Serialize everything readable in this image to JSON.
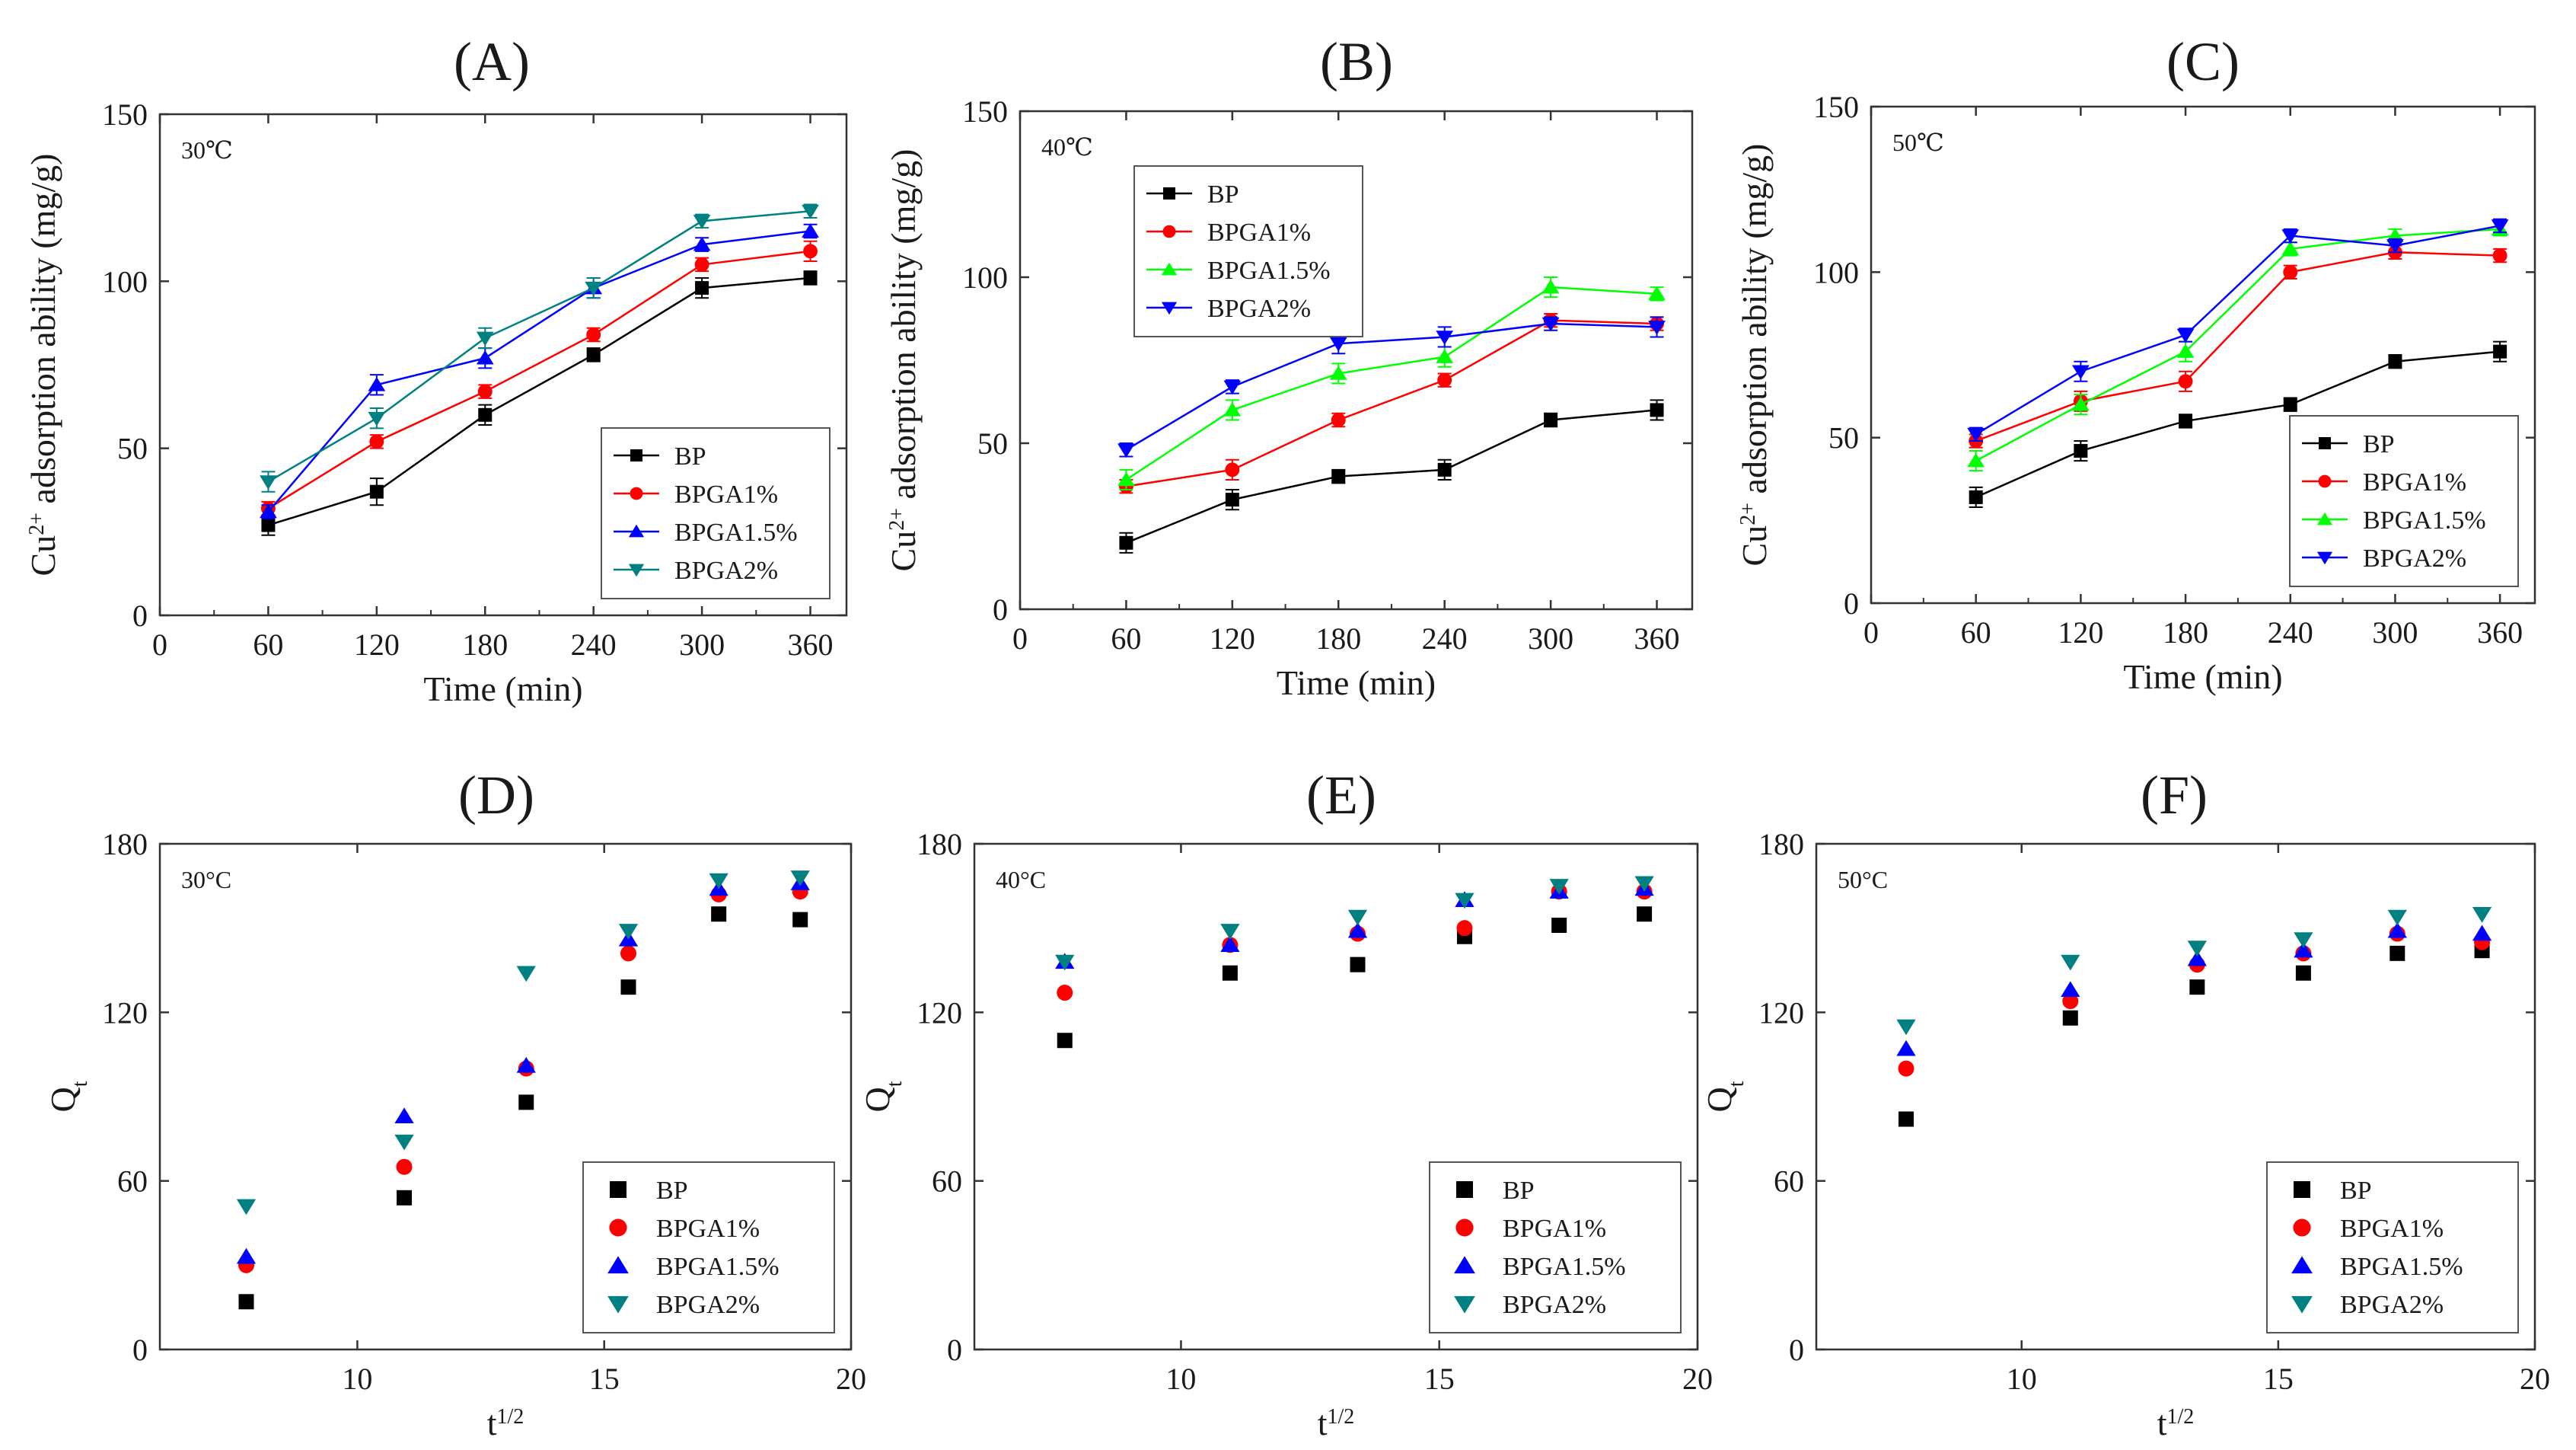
{
  "chart_data": [
    {
      "id": "A",
      "panel_label": "(A)",
      "type": "line",
      "annotation": "30℃",
      "xlabel": "Time (min)",
      "ylabel": "Cu2+ adsorption ability (mg/g)",
      "ylabel_parts": [
        "Cu",
        "2+",
        " adsorption ability (mg/g)"
      ],
      "xlim": [
        0,
        380
      ],
      "ylim": [
        0,
        150
      ],
      "xticks": [
        0,
        60,
        120,
        180,
        240,
        300,
        360
      ],
      "yticks": [
        0,
        50,
        100,
        150
      ],
      "legend_position": "bottom-right",
      "error_bars": true,
      "x": [
        60,
        120,
        180,
        240,
        300,
        360
      ],
      "series": [
        {
          "name": "BP",
          "color": "#000000",
          "marker": "square",
          "values": [
            27,
            37,
            60,
            78,
            98,
            101
          ],
          "errors": [
            3,
            4,
            3,
            2,
            3,
            2
          ]
        },
        {
          "name": "BPGA1%",
          "color": "#ff0000",
          "marker": "circle",
          "values": [
            32,
            52,
            67,
            84,
            105,
            109
          ],
          "errors": [
            2,
            2,
            2,
            2,
            2,
            3
          ]
        },
        {
          "name": "BPGA1.5%",
          "color": "#0000ff",
          "marker": "triangle-up",
          "values": [
            31,
            69,
            77,
            98,
            111,
            115
          ],
          "errors": [
            2,
            3,
            3,
            3,
            2,
            2
          ]
        },
        {
          "name": "BPGA2%",
          "color": "#008080",
          "marker": "triangle-down",
          "values": [
            40,
            59,
            83,
            98,
            118,
            121
          ],
          "errors": [
            3,
            3,
            3,
            3,
            2,
            2
          ]
        }
      ]
    },
    {
      "id": "B",
      "panel_label": "(B)",
      "type": "line",
      "annotation": "40℃",
      "xlabel": "Time (min)",
      "ylabel": "Cu2+ adsorption ability (mg/g)",
      "ylabel_parts": [
        "Cu",
        "2+",
        " adsorption ability (mg/g)"
      ],
      "xlim": [
        0,
        380
      ],
      "ylim": [
        0,
        150
      ],
      "xticks": [
        0,
        60,
        120,
        180,
        240,
        300,
        360
      ],
      "yticks": [
        0,
        50,
        100,
        150
      ],
      "legend_position": "top-left",
      "error_bars": true,
      "x": [
        60,
        120,
        180,
        240,
        300,
        360
      ],
      "series": [
        {
          "name": "BP",
          "color": "#000000",
          "marker": "square",
          "values": [
            20,
            33,
            40,
            42,
            57,
            60
          ],
          "errors": [
            3,
            3,
            2,
            3,
            2,
            3
          ]
        },
        {
          "name": "BPGA1%",
          "color": "#ff0000",
          "marker": "circle",
          "values": [
            37,
            42,
            57,
            69,
            87,
            86
          ],
          "errors": [
            2,
            3,
            2,
            2,
            2,
            2
          ]
        },
        {
          "name": "BPGA1.5%",
          "color": "#00ff00",
          "marker": "triangle-up",
          "values": [
            39,
            60,
            71,
            76,
            97,
            95
          ],
          "errors": [
            3,
            3,
            3,
            3,
            3,
            2
          ]
        },
        {
          "name": "BPGA2%",
          "color": "#0000ff",
          "marker": "triangle-down",
          "values": [
            48,
            67,
            80,
            82,
            86,
            85
          ],
          "errors": [
            2,
            2,
            3,
            3,
            2,
            3
          ]
        }
      ]
    },
    {
      "id": "C",
      "panel_label": "(C)",
      "type": "line",
      "annotation": "50℃",
      "xlabel": "Time (min)",
      "ylabel": "Cu2+ adsorption ability (mg/g)",
      "ylabel_parts": [
        "Cu",
        "2+",
        " adsorption ability (mg/g)"
      ],
      "xlim": [
        0,
        380
      ],
      "ylim": [
        0,
        150
      ],
      "xticks": [
        0,
        60,
        120,
        180,
        240,
        300,
        360
      ],
      "yticks": [
        0,
        50,
        100,
        150
      ],
      "legend_position": "bottom-right",
      "error_bars": true,
      "x": [
        60,
        120,
        180,
        240,
        300,
        360
      ],
      "series": [
        {
          "name": "BP",
          "color": "#000000",
          "marker": "square",
          "values": [
            32,
            46,
            55,
            60,
            73,
            76
          ],
          "errors": [
            3,
            3,
            2,
            2,
            2,
            3
          ]
        },
        {
          "name": "BPGA1%",
          "color": "#ff0000",
          "marker": "circle",
          "values": [
            49,
            61,
            67,
            100,
            106,
            105
          ],
          "errors": [
            2,
            3,
            3,
            2,
            2,
            2
          ]
        },
        {
          "name": "BPGA1.5%",
          "color": "#00ff00",
          "marker": "triangle-up",
          "values": [
            43,
            60,
            76,
            107,
            111,
            113
          ],
          "errors": [
            3,
            3,
            3,
            2,
            2,
            2
          ]
        },
        {
          "name": "BPGA2%",
          "color": "#0000ff",
          "marker": "triangle-down",
          "values": [
            51,
            70,
            81,
            111,
            108,
            114
          ],
          "errors": [
            2,
            3,
            2,
            2,
            2,
            2
          ]
        }
      ]
    },
    {
      "id": "D",
      "panel_label": "(D)",
      "type": "scatter",
      "annotation": "30°C",
      "xlabel": "t1/2",
      "ylabel": "Qt",
      "xlabel_parts": [
        "t",
        "1/2"
      ],
      "ylabel_parts": [
        "Q",
        "t"
      ],
      "xlim": [
        6,
        20
      ],
      "ylim": [
        0,
        180
      ],
      "xticks": [
        10,
        15,
        20
      ],
      "yticks": [
        0,
        60,
        120,
        180
      ],
      "legend_position": "bottom-right",
      "error_bars": false,
      "x": [
        7.75,
        10.95,
        13.42,
        15.49,
        17.32,
        18.97
      ],
      "series": [
        {
          "name": "BP",
          "color": "#000000",
          "marker": "square",
          "values": [
            17,
            54,
            88,
            129,
            155,
            153
          ]
        },
        {
          "name": "BPGA1%",
          "color": "#ff0000",
          "marker": "circle",
          "values": [
            30,
            65,
            100,
            141,
            162,
            163
          ]
        },
        {
          "name": "BPGA1.5%",
          "color": "#0000ff",
          "marker": "triangle-up",
          "values": [
            33,
            83,
            101,
            146,
            164,
            166
          ]
        },
        {
          "name": "BPGA2%",
          "color": "#008080",
          "marker": "triangle-down",
          "values": [
            51,
            74,
            134,
            149,
            167,
            168
          ]
        }
      ]
    },
    {
      "id": "E",
      "panel_label": "(E)",
      "type": "scatter",
      "annotation": "40°C",
      "xlabel": "t1/2",
      "ylabel": "Qt",
      "xlabel_parts": [
        "t",
        "1/2"
      ],
      "ylabel_parts": [
        "Q",
        "t"
      ],
      "xlim": [
        6,
        20
      ],
      "ylim": [
        0,
        180
      ],
      "xticks": [
        10,
        15,
        20
      ],
      "yticks": [
        0,
        60,
        120,
        180
      ],
      "legend_position": "bottom-right",
      "error_bars": false,
      "x": [
        7.75,
        10.95,
        13.42,
        15.49,
        17.32,
        18.97
      ],
      "series": [
        {
          "name": "BP",
          "color": "#000000",
          "marker": "square",
          "values": [
            110,
            134,
            137,
            147,
            151,
            155
          ]
        },
        {
          "name": "BPGA1%",
          "color": "#ff0000",
          "marker": "circle",
          "values": [
            127,
            144,
            148,
            150,
            163,
            163
          ]
        },
        {
          "name": "BPGA1.5%",
          "color": "#0000ff",
          "marker": "triangle-up",
          "values": [
            138,
            144,
            149,
            160,
            163,
            164
          ]
        },
        {
          "name": "BPGA2%",
          "color": "#008080",
          "marker": "triangle-down",
          "values": [
            138,
            149,
            154,
            160,
            165,
            166
          ]
        }
      ]
    },
    {
      "id": "F",
      "panel_label": "(F)",
      "type": "scatter",
      "annotation": "50°C",
      "xlabel": "t1/2",
      "ylabel": "Qt",
      "xlabel_parts": [
        "t",
        "1/2"
      ],
      "ylabel_parts": [
        "Q",
        "t"
      ],
      "xlim": [
        6,
        20
      ],
      "ylim": [
        0,
        180
      ],
      "xticks": [
        10,
        15,
        20
      ],
      "yticks": [
        0,
        60,
        120,
        180
      ],
      "legend_position": "bottom-right",
      "error_bars": false,
      "x": [
        7.75,
        10.95,
        13.42,
        15.49,
        17.32,
        18.97
      ],
      "series": [
        {
          "name": "BP",
          "color": "#000000",
          "marker": "square",
          "values": [
            82,
            118,
            129,
            134,
            141,
            142
          ]
        },
        {
          "name": "BPGA1%",
          "color": "#ff0000",
          "marker": "circle",
          "values": [
            100,
            124,
            137,
            141,
            148,
            145
          ]
        },
        {
          "name": "BPGA1.5%",
          "color": "#0000ff",
          "marker": "triangle-up",
          "values": [
            107,
            128,
            139,
            142,
            149,
            148
          ]
        },
        {
          "name": "BPGA2%",
          "color": "#008080",
          "marker": "triangle-down",
          "values": [
            115,
            138,
            143,
            146,
            154,
            155
          ]
        }
      ]
    }
  ]
}
